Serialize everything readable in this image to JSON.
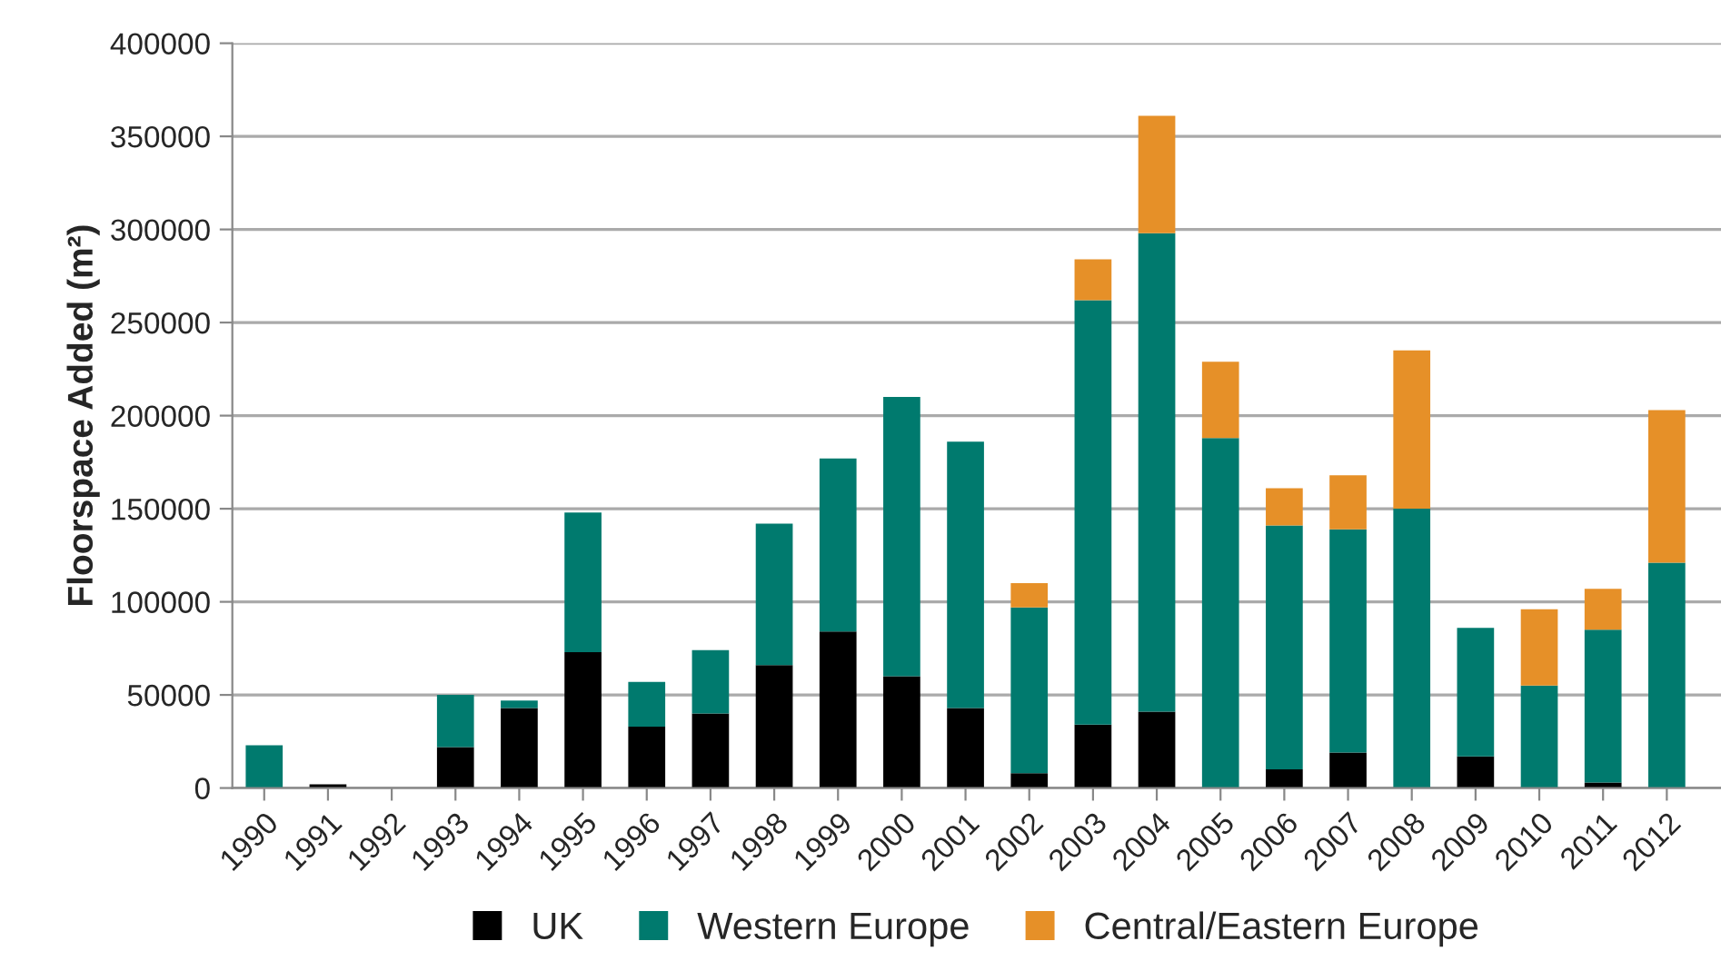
{
  "chart_data": {
    "type": "bar",
    "stacked": true,
    "ylabel": "Floorspace Added (m²)",
    "categories": [
      "1990",
      "1991",
      "1992",
      "1993",
      "1994",
      "1995",
      "1996",
      "1997",
      "1998",
      "1999",
      "2000",
      "2001",
      "2002",
      "2003",
      "2004",
      "2005",
      "2006",
      "2007",
      "2008",
      "2009",
      "2010",
      "2011",
      "2012"
    ],
    "series": [
      {
        "name": "UK",
        "color": "#000000",
        "values": [
          0,
          2000,
          0,
          22000,
          43000,
          73000,
          33000,
          40000,
          66000,
          84000,
          60000,
          43000,
          8000,
          34000,
          41000,
          0,
          10000,
          19000,
          0,
          17000,
          0,
          3000,
          0
        ]
      },
      {
        "name": "Western Europe",
        "color": "#007a6e",
        "values": [
          23000,
          0,
          0,
          28000,
          4000,
          75000,
          24000,
          34000,
          76000,
          93000,
          150000,
          143000,
          89000,
          228000,
          257000,
          188000,
          131000,
          120000,
          150000,
          69000,
          55000,
          82000,
          121000
        ]
      },
      {
        "name": "Central/Eastern Europe",
        "color": "#e69028",
        "values": [
          0,
          0,
          0,
          0,
          0,
          0,
          0,
          0,
          0,
          0,
          0,
          0,
          13000,
          22000,
          63000,
          41000,
          20000,
          29000,
          85000,
          0,
          41000,
          22000,
          82000
        ]
      }
    ],
    "ylim": [
      0,
      400000
    ],
    "yticks": [
      0,
      50000,
      100000,
      150000,
      200000,
      250000,
      300000,
      350000,
      400000
    ],
    "grid": "y",
    "legend": "bottom"
  }
}
